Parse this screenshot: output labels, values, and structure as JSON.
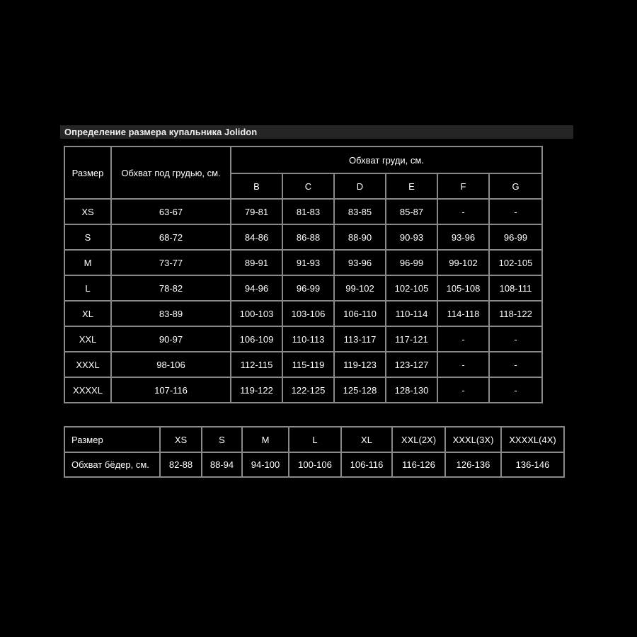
{
  "title": "Определение размера купальника Jolidon",
  "size_table": {
    "headers": {
      "size": "Размер",
      "underbust": "Обхват под грудью, см.",
      "bust_group": "Обхват груди, см.",
      "cups": [
        "B",
        "C",
        "D",
        "E",
        "F",
        "G"
      ]
    },
    "rows": [
      {
        "size": "XS",
        "underbust": "63-67",
        "cups": [
          "79-81",
          "81-83",
          "83-85",
          "85-87",
          "-",
          "-"
        ]
      },
      {
        "size": "S",
        "underbust": "68-72",
        "cups": [
          "84-86",
          "86-88",
          "88-90",
          "90-93",
          "93-96",
          "96-99"
        ]
      },
      {
        "size": "M",
        "underbust": "73-77",
        "cups": [
          "89-91",
          "91-93",
          "93-96",
          "96-99",
          "99-102",
          "102-105"
        ]
      },
      {
        "size": "L",
        "underbust": "78-82",
        "cups": [
          "94-96",
          "96-99",
          "99-102",
          "102-105",
          "105-108",
          "108-111"
        ]
      },
      {
        "size": "XL",
        "underbust": "83-89",
        "cups": [
          "100-103",
          "103-106",
          "106-110",
          "110-114",
          "114-118",
          "118-122"
        ]
      },
      {
        "size": "XXL",
        "underbust": "90-97",
        "cups": [
          "106-109",
          "110-113",
          "113-117",
          "117-121",
          "-",
          "-"
        ]
      },
      {
        "size": "XXXL",
        "underbust": "98-106",
        "cups": [
          "112-115",
          "115-119",
          "119-123",
          "123-127",
          "-",
          "-"
        ]
      },
      {
        "size": "XXXXL",
        "underbust": "107-116",
        "cups": [
          "119-122",
          "122-125",
          "125-128",
          "128-130",
          "-",
          "-"
        ]
      }
    ]
  },
  "hips_table": {
    "size_label": "Размер",
    "hips_label": "Обхват бёдер, см.",
    "sizes": [
      "XS",
      "S",
      "M",
      "L",
      "XL",
      "XXL(2X)",
      "XXXL(3X)",
      "XXXXL(4X)"
    ],
    "values": [
      "82-88",
      "88-94",
      "94-100",
      "100-106",
      "106-116",
      "116-126",
      "126-136",
      "136-146"
    ]
  },
  "colors": {
    "page_background": "#000000",
    "title_bar_background": "#252525",
    "table_border": "#888888",
    "text": "#ffffff"
  }
}
